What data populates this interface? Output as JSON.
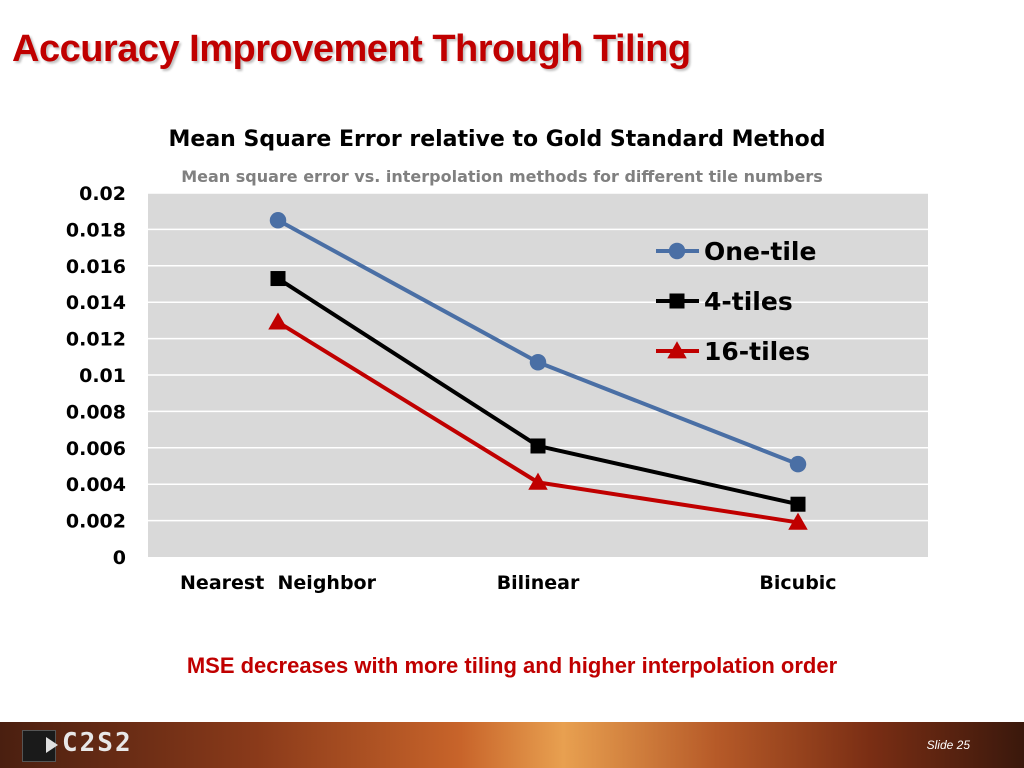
{
  "slide": {
    "title": "Accuracy Improvement Through Tiling",
    "caption": "MSE decreases with more tiling and higher interpolation order",
    "footer": {
      "logo_text": "C2S2",
      "slide_label": "Slide 25"
    }
  },
  "colors": {
    "title": "#c00000",
    "plot_bg": "#d9d9d9",
    "grid": "#ffffff",
    "one_tile": "#4a6fa5",
    "four_tiles": "#000000",
    "sixteen_tiles": "#c00000"
  },
  "chart_data": {
    "type": "line",
    "title": "Mean Square Error relative to Gold Standard Method",
    "subtitle": "Mean square error vs. interpolation methods for different tile numbers",
    "categories": [
      "Nearest  Neighbor",
      "Bilinear",
      "Bicubic"
    ],
    "ylim": [
      0,
      0.02
    ],
    "yticks": [
      "0",
      "0.002",
      "0.004",
      "0.006",
      "0.008",
      "0.01",
      "0.012",
      "0.014",
      "0.016",
      "0.018",
      "0.02"
    ],
    "grid": true,
    "legend_position": "top-right",
    "series": [
      {
        "name": "One-tile",
        "values": [
          0.0185,
          0.0107,
          0.0051
        ],
        "color": "#4a6fa5",
        "marker": "circle"
      },
      {
        "name": "4-tiles",
        "values": [
          0.0153,
          0.0061,
          0.0029
        ],
        "color": "#000000",
        "marker": "square"
      },
      {
        "name": "16-tiles",
        "values": [
          0.0129,
          0.0041,
          0.0019
        ],
        "color": "#c00000",
        "marker": "triangle"
      }
    ]
  }
}
